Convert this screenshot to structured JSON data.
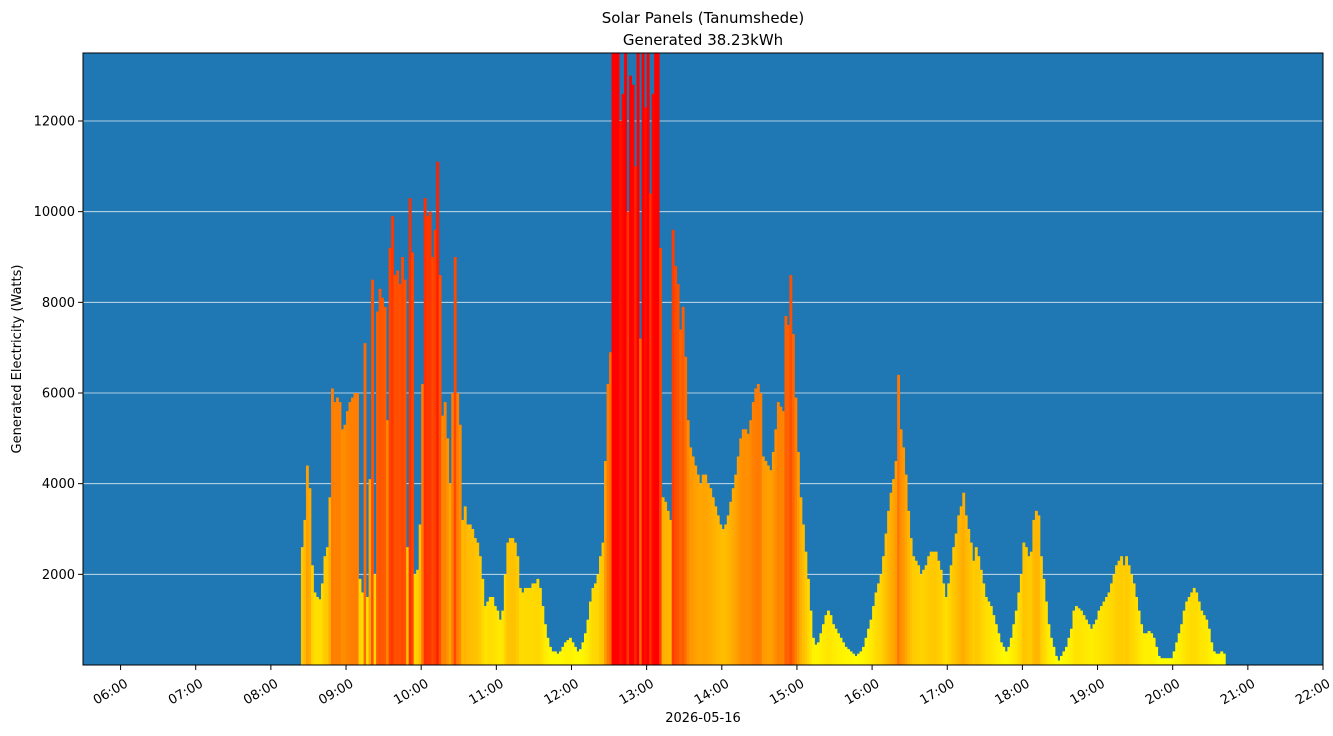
{
  "chart_data": {
    "type": "bar",
    "title": "Solar Panels (Tanumshede)",
    "subtitle": "Generated 38.23kWh",
    "xlabel": "2026-05-16",
    "ylabel": "Generated Electricity (Watts)",
    "x_range": [
      "05:30",
      "22:00"
    ],
    "ylim": [
      0,
      13500
    ],
    "y_ticks": [
      2000,
      4000,
      6000,
      8000,
      10000,
      12000
    ],
    "x_ticks": [
      "06:00",
      "07:00",
      "08:00",
      "09:00",
      "10:00",
      "11:00",
      "12:00",
      "13:00",
      "14:00",
      "15:00",
      "16:00",
      "17:00",
      "18:00",
      "19:00",
      "20:00",
      "21:00",
      "22:00"
    ],
    "grid": "horizontal",
    "plot_background": "#1f77b4",
    "grid_color": "#ffffff",
    "color_scale": {
      "low": "#ffff00",
      "mid": "#ff8000",
      "high": "#ff0000",
      "max_value": 13000
    },
    "bar_minutes": 2,
    "series": [
      {
        "x": [
          "08:24",
          "08:26",
          "08:28",
          "08:30",
          "08:32",
          "08:34",
          "08:36",
          "08:38",
          "08:40",
          "08:42",
          "08:44",
          "08:46",
          "08:48",
          "08:50",
          "08:52",
          "08:54",
          "08:56",
          "08:58",
          "09:00",
          "09:02",
          "09:04",
          "09:06",
          "09:08",
          "09:10",
          "09:12",
          "09:14",
          "09:16",
          "09:18",
          "09:20",
          "09:22",
          "09:24",
          "09:26",
          "09:28",
          "09:30",
          "09:32",
          "09:34",
          "09:36",
          "09:38",
          "09:40",
          "09:42",
          "09:44",
          "09:46",
          "09:48",
          "09:50",
          "09:52",
          "09:54",
          "09:56",
          "09:58",
          "10:00",
          "10:02",
          "10:04",
          "10:06",
          "10:08",
          "10:10",
          "10:12",
          "10:14",
          "10:16",
          "10:18",
          "10:20",
          "10:22",
          "10:24",
          "10:26",
          "10:28",
          "10:30",
          "10:32",
          "10:34",
          "10:36",
          "10:38",
          "10:40",
          "10:42",
          "10:44",
          "10:46",
          "10:48",
          "10:50",
          "10:52",
          "10:54",
          "10:56",
          "10:58",
          "11:00",
          "11:02",
          "11:04",
          "11:06",
          "11:08",
          "11:10",
          "11:12",
          "11:14",
          "11:16",
          "11:18",
          "11:20",
          "11:22",
          "11:24",
          "11:26",
          "11:28",
          "11:30",
          "11:32",
          "11:34",
          "11:36",
          "11:38",
          "11:40",
          "11:42",
          "11:44",
          "11:46",
          "11:48",
          "11:50",
          "11:52",
          "11:54",
          "11:56",
          "11:58",
          "12:00",
          "12:02",
          "12:04",
          "12:06",
          "12:08",
          "12:10",
          "12:12",
          "12:14",
          "12:16",
          "12:18",
          "12:20",
          "12:22",
          "12:24",
          "12:26",
          "12:28",
          "12:30",
          "12:32",
          "12:34",
          "12:36",
          "12:38",
          "12:40",
          "12:42",
          "12:44",
          "12:46",
          "12:48",
          "12:50",
          "12:52",
          "12:54",
          "12:56",
          "12:58",
          "13:00",
          "13:02",
          "13:04",
          "13:06",
          "13:08",
          "13:10",
          "13:12",
          "13:14",
          "13:16",
          "13:18",
          "13:20",
          "13:22",
          "13:24",
          "13:26",
          "13:28",
          "13:30",
          "13:32",
          "13:34",
          "13:36",
          "13:38",
          "13:40",
          "13:42",
          "13:44",
          "13:46",
          "13:48",
          "13:50",
          "13:52",
          "13:54",
          "13:56",
          "13:58",
          "14:00",
          "14:02",
          "14:04",
          "14:06",
          "14:08",
          "14:10",
          "14:12",
          "14:14",
          "14:16",
          "14:18",
          "14:20",
          "14:22",
          "14:24",
          "14:26",
          "14:28",
          "14:30",
          "14:32",
          "14:34",
          "14:36",
          "14:38",
          "14:40",
          "14:42",
          "14:44",
          "14:46",
          "14:48",
          "14:50",
          "14:52",
          "14:54",
          "14:56",
          "14:58",
          "15:00",
          "15:02",
          "15:04",
          "15:06",
          "15:08",
          "15:10",
          "15:12",
          "15:14",
          "15:16",
          "15:18",
          "15:20",
          "15:22",
          "15:24",
          "15:26",
          "15:28",
          "15:30",
          "15:32",
          "15:34",
          "15:36",
          "15:38",
          "15:40",
          "15:42",
          "15:44",
          "15:46",
          "15:48",
          "15:50",
          "15:52",
          "15:54",
          "15:56",
          "15:58",
          "16:00",
          "16:02",
          "16:04",
          "16:06",
          "16:08",
          "16:10",
          "16:12",
          "16:14",
          "16:16",
          "16:18",
          "16:20",
          "16:22",
          "16:24",
          "16:26",
          "16:28",
          "16:30",
          "16:32",
          "16:34",
          "16:36",
          "16:38",
          "16:40",
          "16:42",
          "16:44",
          "16:46",
          "16:48",
          "16:50",
          "16:52",
          "16:54",
          "16:56",
          "16:58",
          "17:00",
          "17:02",
          "17:04",
          "17:06",
          "17:08",
          "17:10",
          "17:12",
          "17:14",
          "17:16",
          "17:18",
          "17:20",
          "17:22",
          "17:24",
          "17:26",
          "17:28",
          "17:30",
          "17:32",
          "17:34",
          "17:36",
          "17:38",
          "17:40",
          "17:42",
          "17:44",
          "17:46",
          "17:48",
          "17:50",
          "17:52",
          "17:54",
          "17:56",
          "17:58",
          "18:00",
          "18:02",
          "18:04",
          "18:06",
          "18:08",
          "18:10",
          "18:12",
          "18:14",
          "18:16",
          "18:18",
          "18:20",
          "18:22",
          "18:24",
          "18:26",
          "18:28",
          "18:30",
          "18:32",
          "18:34",
          "18:36",
          "18:38",
          "18:40",
          "18:42",
          "18:44",
          "18:46",
          "18:48",
          "18:50",
          "18:52",
          "18:54",
          "18:56",
          "18:58",
          "19:00",
          "19:02",
          "19:04",
          "19:06",
          "19:08",
          "19:10",
          "19:12",
          "19:14",
          "19:16",
          "19:18",
          "19:20",
          "19:22",
          "19:24",
          "19:26",
          "19:28",
          "19:30",
          "19:32",
          "19:34",
          "19:36",
          "19:38",
          "19:40",
          "19:42",
          "19:44",
          "19:46",
          "19:48",
          "19:50",
          "19:52",
          "19:54",
          "19:56",
          "19:58",
          "20:00",
          "20:02",
          "20:04",
          "20:06",
          "20:08",
          "20:10",
          "20:12",
          "20:14",
          "20:16",
          "20:18",
          "20:20",
          "20:22",
          "20:24",
          "20:26",
          "20:28",
          "20:30",
          "20:32",
          "20:34",
          "20:36",
          "20:38",
          "20:40"
        ],
        "values": [
          2600,
          3200,
          4400,
          3900,
          2200,
          1600,
          1500,
          1450,
          1800,
          2400,
          2600,
          3700,
          6100,
          5800,
          5900,
          5800,
          5200,
          5300,
          5600,
          5800,
          5900,
          6000,
          6000,
          1900,
          1600,
          7100,
          1500,
          4100,
          8500,
          2000,
          7800,
          8300,
          8100,
          7900,
          5400,
          9200,
          9900,
          8600,
          8700,
          8400,
          9000,
          8500,
          2600,
          10300,
          9100,
          2000,
          2100,
          3100,
          6200,
          10300,
          9900,
          10000,
          9000,
          9600,
          11100,
          8600,
          5500,
          5800,
          5000,
          4000,
          6000,
          9000,
          6000,
          5300,
          3200,
          3500,
          3100,
          3100,
          3000,
          2800,
          2700,
          2400,
          1900,
          1300,
          1400,
          1500,
          1500,
          1300,
          1200,
          1000,
          1200,
          2000,
          2700,
          2800,
          2800,
          2700,
          2400,
          1700,
          1600,
          1700,
          1700,
          1700,
          1800,
          1800,
          1900,
          1700,
          1300,
          900,
          600,
          400,
          300,
          300,
          250,
          300,
          400,
          500,
          550,
          600,
          500,
          400,
          300,
          350,
          500,
          700,
          1000,
          1400,
          1700,
          1800,
          2000,
          2400,
          2700,
          4500,
          6200,
          6900,
          13500,
          13500,
          13500,
          12000,
          12600,
          13500,
          10000,
          13000,
          12800,
          11000,
          13500,
          7200,
          13500,
          12300,
          13500,
          10400,
          12600,
          13500,
          13500,
          9200,
          3700,
          3600,
          3400,
          3200,
          9600,
          8800,
          8400,
          7400,
          7900,
          6800,
          5400,
          4800,
          4600,
          4400,
          4200,
          4000,
          4200,
          4200,
          4000,
          3900,
          3700,
          3500,
          3300,
          3100,
          3000,
          3100,
          3300,
          3600,
          3900,
          4200,
          4600,
          5000,
          5200,
          5200,
          5100,
          5400,
          5800,
          6100,
          6200,
          6000,
          4600,
          4500,
          4400,
          4300,
          4700,
          5200,
          5800,
          5700,
          5600,
          7700,
          7500,
          8600,
          7300,
          5900,
          4700,
          3700,
          3100,
          2500,
          1900,
          1200,
          600,
          450,
          500,
          700,
          900,
          1100,
          1200,
          1100,
          900,
          800,
          700,
          600,
          500,
          400,
          350,
          300,
          250,
          200,
          250,
          300,
          400,
          600,
          800,
          1000,
          1300,
          1600,
          1800,
          2000,
          2400,
          2900,
          3400,
          3800,
          4100,
          4500,
          6400,
          5200,
          4800,
          4200,
          3400,
          2800,
          2400,
          2300,
          2200,
          2000,
          2100,
          2200,
          2400,
          2500,
          2500,
          2500,
          2300,
          2100,
          1800,
          1500,
          1800,
          2200,
          2600,
          2900,
          3300,
          3500,
          3800,
          3300,
          3000,
          2700,
          2300,
          2600,
          2400,
          2100,
          1800,
          1500,
          1400,
          1300,
          1100,
          900,
          700,
          500,
          400,
          300,
          400,
          600,
          900,
          1200,
          1600,
          2000,
          2700,
          2600,
          2400,
          2500,
          3200,
          3400,
          3300,
          2400,
          1900,
          1400,
          900,
          600,
          400,
          200,
          100,
          200,
          300,
          400,
          600,
          800,
          1200,
          1300,
          1250,
          1200,
          1100,
          1000,
          900,
          800,
          900,
          1000,
          1200,
          1300,
          1400,
          1500,
          1600,
          1800,
          2000,
          2200,
          2300,
          2400,
          2200,
          2400,
          2200,
          2000,
          1800,
          1500,
          1200,
          900,
          700,
          700,
          750,
          700,
          600,
          400,
          200,
          150,
          150,
          150,
          150,
          150,
          300,
          500,
          700,
          900,
          1200,
          1400,
          1500,
          1600,
          1700,
          1600,
          1400,
          1200,
          1100,
          1000,
          800,
          500,
          300,
          250,
          250,
          300,
          250
        ]
      }
    ]
  }
}
